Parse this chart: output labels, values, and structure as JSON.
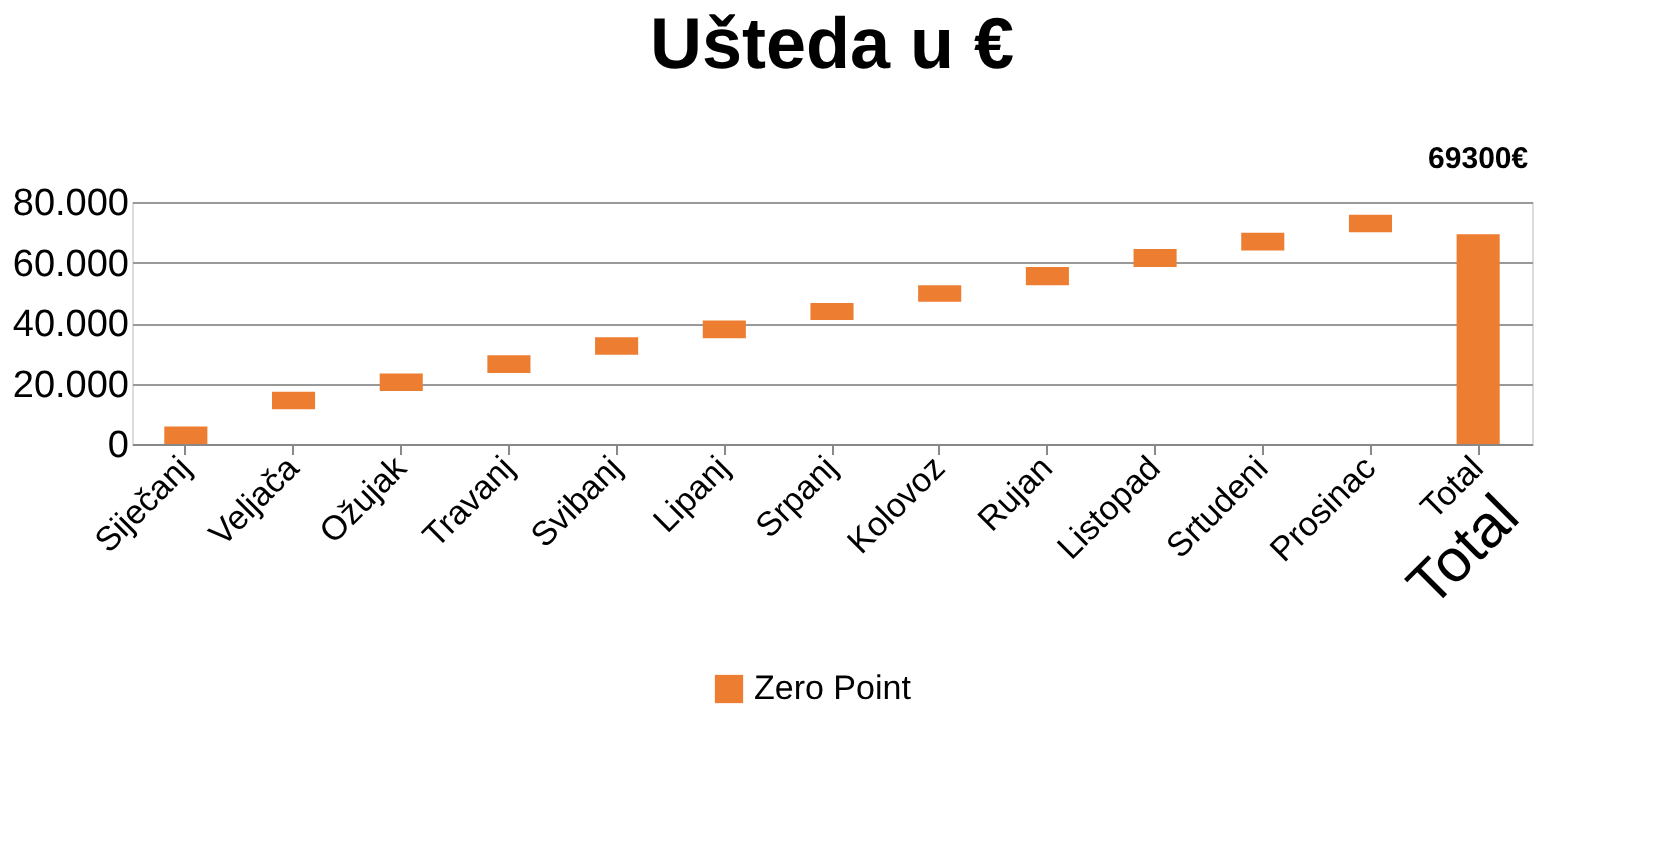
{
  "chart_data": {
    "type": "bar",
    "title": "Ušteda u €",
    "categories": [
      "Siječanj",
      "Veljača",
      "Ožujak",
      "Travanj",
      "Svibanj",
      "Lipanj",
      "Srpanj",
      "Kolovoz",
      "Rujan",
      "Listopad",
      "Srtudeni",
      "Prosinac",
      "Total"
    ],
    "series": [
      {
        "name": "Zero Point",
        "color": "#ed7d31",
        "base": [
          0,
          11500,
          17500,
          23500,
          29500,
          35000,
          41000,
          47000,
          52500,
          58500,
          64000,
          70000,
          0
        ],
        "values": [
          5800,
          5800,
          5800,
          5800,
          5800,
          5800,
          5600,
          5500,
          6000,
          6000,
          5800,
          5800,
          69300
        ],
        "value_labels": [
          null,
          null,
          null,
          null,
          null,
          null,
          null,
          null,
          null,
          null,
          null,
          null,
          "69300€"
        ]
      }
    ],
    "ylim": [
      0,
      80000
    ],
    "yticks": [
      {
        "value": 0,
        "label": "0"
      },
      {
        "value": 20000,
        "label": "20.000"
      },
      {
        "value": 40000,
        "label": "40.000"
      },
      {
        "value": 60000,
        "label": "60.000"
      },
      {
        "value": 80000,
        "label": "80.000"
      }
    ],
    "grid": "y",
    "legend": "bottom",
    "annotations": [
      "Total"
    ]
  }
}
